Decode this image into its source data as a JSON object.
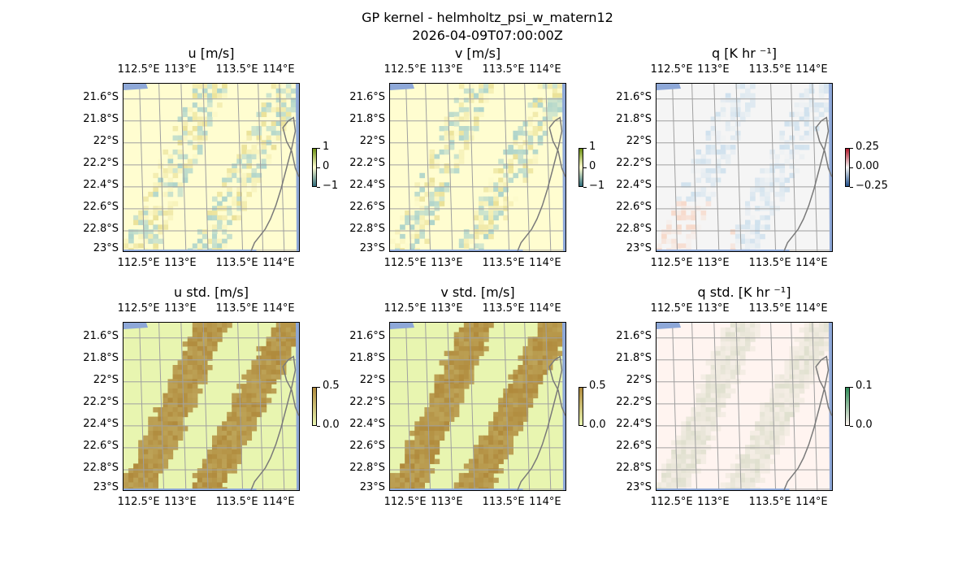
{
  "figure": {
    "title": "GP kernel - helmholtz_psi_w_matern12",
    "subtitle": "2026-04-09T07:00:00Z"
  },
  "chart_data": [
    {
      "type": "heatmap",
      "title": "u [m/s]",
      "x_ticks": [
        "112.5°E",
        "113°E",
        "113.5°E",
        "114°E"
      ],
      "y_ticks": [
        "21.6°S",
        "21.8°S",
        "22°S",
        "22.2°S",
        "22.4°S",
        "22.6°S",
        "22.8°S",
        "23°S"
      ],
      "colorbar": {
        "ticks": [
          "1",
          "0",
          "−1"
        ],
        "range": [
          -1,
          1
        ],
        "colormap": "BrBG-like",
        "colors": [
          "#2d6b7a",
          "#fffdd0",
          "#6b8f10"
        ]
      }
    },
    {
      "type": "heatmap",
      "title": "v [m/s]",
      "x_ticks": [
        "112.5°E",
        "113°E",
        "113.5°E",
        "114°E"
      ],
      "y_ticks": [
        "21.6°S",
        "21.8°S",
        "22°S",
        "22.2°S",
        "22.4°S",
        "22.6°S",
        "22.8°S",
        "23°S"
      ],
      "colorbar": {
        "ticks": [
          "1",
          "0",
          "−1"
        ],
        "range": [
          -1,
          1
        ],
        "colormap": "BrBG-like",
        "colors": [
          "#2d6b7a",
          "#fffdd0",
          "#6b8f10"
        ]
      }
    },
    {
      "type": "heatmap",
      "title": "q [K hr ⁻¹]",
      "x_ticks": [
        "112.5°E",
        "113°E",
        "113.5°E",
        "114°E"
      ],
      "y_ticks": [
        "21.6°S",
        "21.8°S",
        "22°S",
        "22.2°S",
        "22.4°S",
        "22.6°S",
        "22.8°S",
        "23°S"
      ],
      "colorbar": {
        "ticks": [
          "0.25",
          "0.00",
          "−0.25"
        ],
        "range": [
          -0.25,
          0.25
        ],
        "colormap": "RdBu-like",
        "colors": [
          "#1f4e8a",
          "#f5f5f5",
          "#b2182b"
        ]
      }
    },
    {
      "type": "heatmap",
      "title": "u std. [m/s]",
      "x_ticks": [
        "112.5°E",
        "113°E",
        "113.5°E",
        "114°E"
      ],
      "y_ticks": [
        "21.6°S",
        "21.8°S",
        "22°S",
        "22.2°S",
        "22.4°S",
        "22.6°S",
        "22.8°S",
        "23°S"
      ],
      "colorbar": {
        "ticks": [
          "0.5",
          "0.0"
        ],
        "range": [
          0,
          0.5
        ],
        "colormap": "olive",
        "colors": [
          "#e8f5b0",
          "#b08a3c"
        ]
      }
    },
    {
      "type": "heatmap",
      "title": "v std. [m/s]",
      "x_ticks": [
        "112.5°E",
        "113°E",
        "113.5°E",
        "114°E"
      ],
      "y_ticks": [
        "21.6°S",
        "21.8°S",
        "22°S",
        "22.2°S",
        "22.4°S",
        "22.6°S",
        "22.8°S",
        "23°S"
      ],
      "colorbar": {
        "ticks": [
          "0.5",
          "0.0"
        ],
        "range": [
          0,
          0.5
        ],
        "colormap": "olive",
        "colors": [
          "#e8f5b0",
          "#b08a3c"
        ]
      }
    },
    {
      "type": "heatmap",
      "title": "q std. [K hr ⁻¹]",
      "x_ticks": [
        "112.5°E",
        "113°E",
        "113.5°E",
        "114°E"
      ],
      "y_ticks": [
        "21.6°S",
        "21.8°S",
        "22°S",
        "22.2°S",
        "22.4°S",
        "22.6°S",
        "22.8°S",
        "23°S"
      ],
      "colorbar": {
        "ticks": [
          "0.1",
          "0.0"
        ],
        "range": [
          0,
          0.1
        ],
        "colormap": "pink-green",
        "colors": [
          "#fff4f0",
          "#2e8b57"
        ]
      }
    }
  ]
}
